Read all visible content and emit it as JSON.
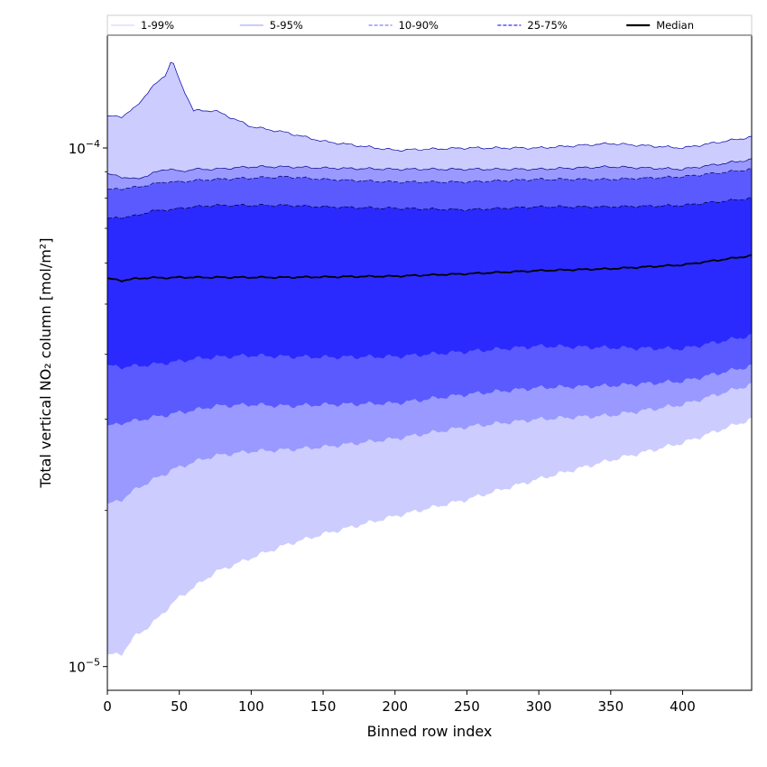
{
  "chart_data": {
    "type": "area",
    "xlabel": "Binned row index",
    "ylabel": "Total vertical NO₂ column [mol/m²]",
    "xlim": [
      0,
      448
    ],
    "ylim": [
      9e-06,
      0.000165
    ],
    "yscale": "log",
    "x_ticks": [
      0,
      50,
      100,
      150,
      200,
      250,
      300,
      350,
      400
    ],
    "y_tick_labels": [
      {
        "value": 1e-05,
        "base": "10",
        "exp": "−5"
      },
      {
        "value": 0.0001,
        "base": "10",
        "exp": "−4"
      }
    ],
    "x": [
      0,
      10,
      20,
      30,
      40,
      45,
      50,
      60,
      75,
      100,
      125,
      150,
      200,
      250,
      300,
      350,
      400,
      448
    ],
    "bands": [
      {
        "name": "1-99%",
        "color": "#ccccff",
        "edge": "#0000aa",
        "dash": "solid",
        "upper": [
          0.000115,
          0.000115,
          0.00012,
          0.00013,
          0.000138,
          0.000148,
          0.000135,
          0.000118,
          0.000118,
          0.00011,
          0.000107,
          0.000103,
          9.9e-05,
          0.0001,
          0.0001,
          0.000102,
          0.0001,
          0.000105
        ],
        "lower": [
          1.05e-05,
          1.06e-05,
          1.15e-05,
          1.2e-05,
          1.28e-05,
          1.32e-05,
          1.36e-05,
          1.42e-05,
          1.52e-05,
          1.62e-05,
          1.72e-05,
          1.8e-05,
          1.95e-05,
          2.1e-05,
          2.3e-05,
          2.5e-05,
          2.7e-05,
          3e-05
        ]
      },
      {
        "name": "5-95%",
        "color": "#9999ff",
        "edge": "#000088",
        "dash": "solid",
        "upper": [
          8.9e-05,
          8.8e-05,
          8.7e-05,
          8.9e-05,
          9.1e-05,
          9.1e-05,
          9e-05,
          9.1e-05,
          9.1e-05,
          9.2e-05,
          9.2e-05,
          9.15e-05,
          9.1e-05,
          9.1e-05,
          9.1e-05,
          9.2e-05,
          9.1e-05,
          9.5e-05
        ],
        "lower": [
          2.05e-05,
          2.1e-05,
          2.2e-05,
          2.28e-05,
          2.35e-05,
          2.4e-05,
          2.42e-05,
          2.48e-05,
          2.55e-05,
          2.6e-05,
          2.62e-05,
          2.65e-05,
          2.75e-05,
          2.9e-05,
          3e-05,
          3.05e-05,
          3.2e-05,
          3.5e-05
        ]
      },
      {
        "name": "10-90%",
        "color": "#5a5aff",
        "edge": "#000066",
        "dash": "dashed",
        "upper": [
          8.3e-05,
          8.35e-05,
          8.4e-05,
          8.5e-05,
          8.6e-05,
          8.6e-05,
          8.6e-05,
          8.65e-05,
          8.7e-05,
          8.75e-05,
          8.8e-05,
          8.7e-05,
          8.6e-05,
          8.6e-05,
          8.7e-05,
          8.7e-05,
          8.8e-05,
          9.1e-05
        ],
        "lower": [
          2.9e-05,
          2.95e-05,
          2.98e-05,
          3.02e-05,
          3.05e-05,
          3.07e-05,
          3.09e-05,
          3.12e-05,
          3.18e-05,
          3.2e-05,
          3.18e-05,
          3.2e-05,
          3.22e-05,
          3.35e-05,
          3.45e-05,
          3.48e-05,
          3.55e-05,
          3.8e-05
        ]
      },
      {
        "name": "25-75%",
        "color": "#2a2aff",
        "edge": "#000033",
        "dash": "dashed",
        "upper": [
          7.3e-05,
          7.35e-05,
          7.4e-05,
          7.55e-05,
          7.6e-05,
          7.6e-05,
          7.65e-05,
          7.7e-05,
          7.75e-05,
          7.75e-05,
          7.75e-05,
          7.7e-05,
          7.65e-05,
          7.6e-05,
          7.7e-05,
          7.7e-05,
          7.75e-05,
          8e-05
        ],
        "lower": [
          3.8e-05,
          3.78e-05,
          3.8e-05,
          3.82e-05,
          3.85e-05,
          3.86e-05,
          3.88e-05,
          3.92e-05,
          3.95e-05,
          3.98e-05,
          3.96e-05,
          3.95e-05,
          3.96e-05,
          4.05e-05,
          4.15e-05,
          4.12e-05,
          4.1e-05,
          4.35e-05
        ]
      }
    ],
    "median": {
      "name": "Median",
      "color": "#000000",
      "values": [
        5.6e-05,
        5.55e-05,
        5.6e-05,
        5.62e-05,
        5.62e-05,
        5.62e-05,
        5.63e-05,
        5.63e-05,
        5.63e-05,
        5.63e-05,
        5.63e-05,
        5.64e-05,
        5.66e-05,
        5.72e-05,
        5.8e-05,
        5.85e-05,
        5.95e-05,
        6.2e-05
      ]
    },
    "legend": {
      "placement": "top",
      "items": [
        {
          "label": "1-99%",
          "color": "#ccccff",
          "dash": "solid",
          "width": 1
        },
        {
          "label": "5-95%",
          "color": "#9999ff",
          "dash": "solid",
          "width": 1
        },
        {
          "label": "10-90%",
          "color": "#8080ff",
          "dash": "dashed",
          "width": 1.2
        },
        {
          "label": "25-75%",
          "color": "#5050ff",
          "dash": "dashed",
          "width": 1.5
        },
        {
          "label": "Median",
          "color": "#000000",
          "dash": "solid",
          "width": 2.2
        }
      ]
    }
  }
}
